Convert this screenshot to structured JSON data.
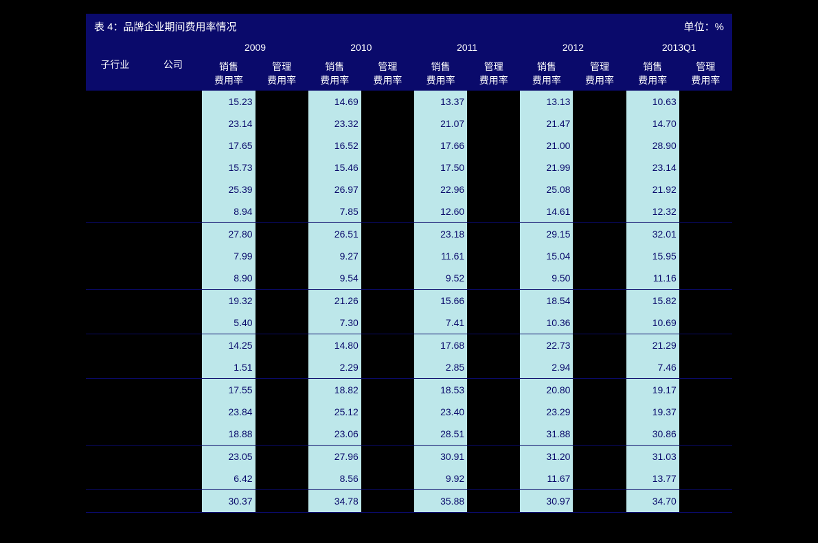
{
  "title_prefix": "表 4：",
  "title_text": "品牌企业期间费用率情况",
  "title_unit": "单位：%",
  "colors": {
    "header_bg": "#0a0a6b",
    "highlight_bg": "#bde7ea",
    "page_bg": "#000000",
    "text": "#ffffff",
    "border": "#0a0a6b"
  },
  "header": {
    "col_industry": "子行业",
    "col_company": "公司",
    "years": [
      "2009",
      "2010",
      "2011",
      "2012",
      "2013Q1"
    ],
    "sales_label_line1": "销售",
    "sales_label_line2": "费用率",
    "mgmt_label_line1": "管理",
    "mgmt_label_line2": "费用率"
  },
  "groups": [
    {
      "rows": [
        {
          "sales": [
            "15.23",
            "14.69",
            "13.37",
            "13.13",
            "10.63"
          ]
        },
        {
          "sales": [
            "23.14",
            "23.32",
            "21.07",
            "21.47",
            "14.70"
          ]
        },
        {
          "sales": [
            "17.65",
            "16.52",
            "17.66",
            "21.00",
            "28.90"
          ]
        },
        {
          "sales": [
            "15.73",
            "15.46",
            "17.50",
            "21.99",
            "23.14"
          ]
        },
        {
          "sales": [
            "25.39",
            "26.97",
            "22.96",
            "25.08",
            "21.92"
          ]
        },
        {
          "sales": [
            "8.94",
            "7.85",
            "12.60",
            "14.61",
            "12.32"
          ]
        }
      ]
    },
    {
      "rows": [
        {
          "sales": [
            "27.80",
            "26.51",
            "23.18",
            "29.15",
            "32.01"
          ]
        },
        {
          "sales": [
            "7.99",
            "9.27",
            "11.61",
            "15.04",
            "15.95"
          ]
        },
        {
          "sales": [
            "8.90",
            "9.54",
            "9.52",
            "9.50",
            "11.16"
          ]
        }
      ]
    },
    {
      "rows": [
        {
          "sales": [
            "19.32",
            "21.26",
            "15.66",
            "18.54",
            "15.82"
          ]
        },
        {
          "sales": [
            "5.40",
            "7.30",
            "7.41",
            "10.36",
            "10.69"
          ]
        }
      ]
    },
    {
      "rows": [
        {
          "sales": [
            "14.25",
            "14.80",
            "17.68",
            "22.73",
            "21.29"
          ]
        },
        {
          "sales": [
            "1.51",
            "2.29",
            "2.85",
            "2.94",
            "7.46"
          ]
        }
      ]
    },
    {
      "rows": [
        {
          "sales": [
            "17.55",
            "18.82",
            "18.53",
            "20.80",
            "19.17"
          ]
        },
        {
          "sales": [
            "23.84",
            "25.12",
            "23.40",
            "23.29",
            "19.37"
          ]
        },
        {
          "sales": [
            "18.88",
            "23.06",
            "28.51",
            "31.88",
            "30.86"
          ]
        }
      ]
    },
    {
      "rows": [
        {
          "sales": [
            "23.05",
            "27.96",
            "30.91",
            "31.20",
            "31.03"
          ]
        },
        {
          "sales": [
            "6.42",
            "8.56",
            "9.92",
            "11.67",
            "13.77"
          ]
        }
      ]
    },
    {
      "rows": [
        {
          "sales": [
            "30.37",
            "34.78",
            "35.88",
            "30.97",
            "34.70"
          ]
        }
      ]
    }
  ]
}
